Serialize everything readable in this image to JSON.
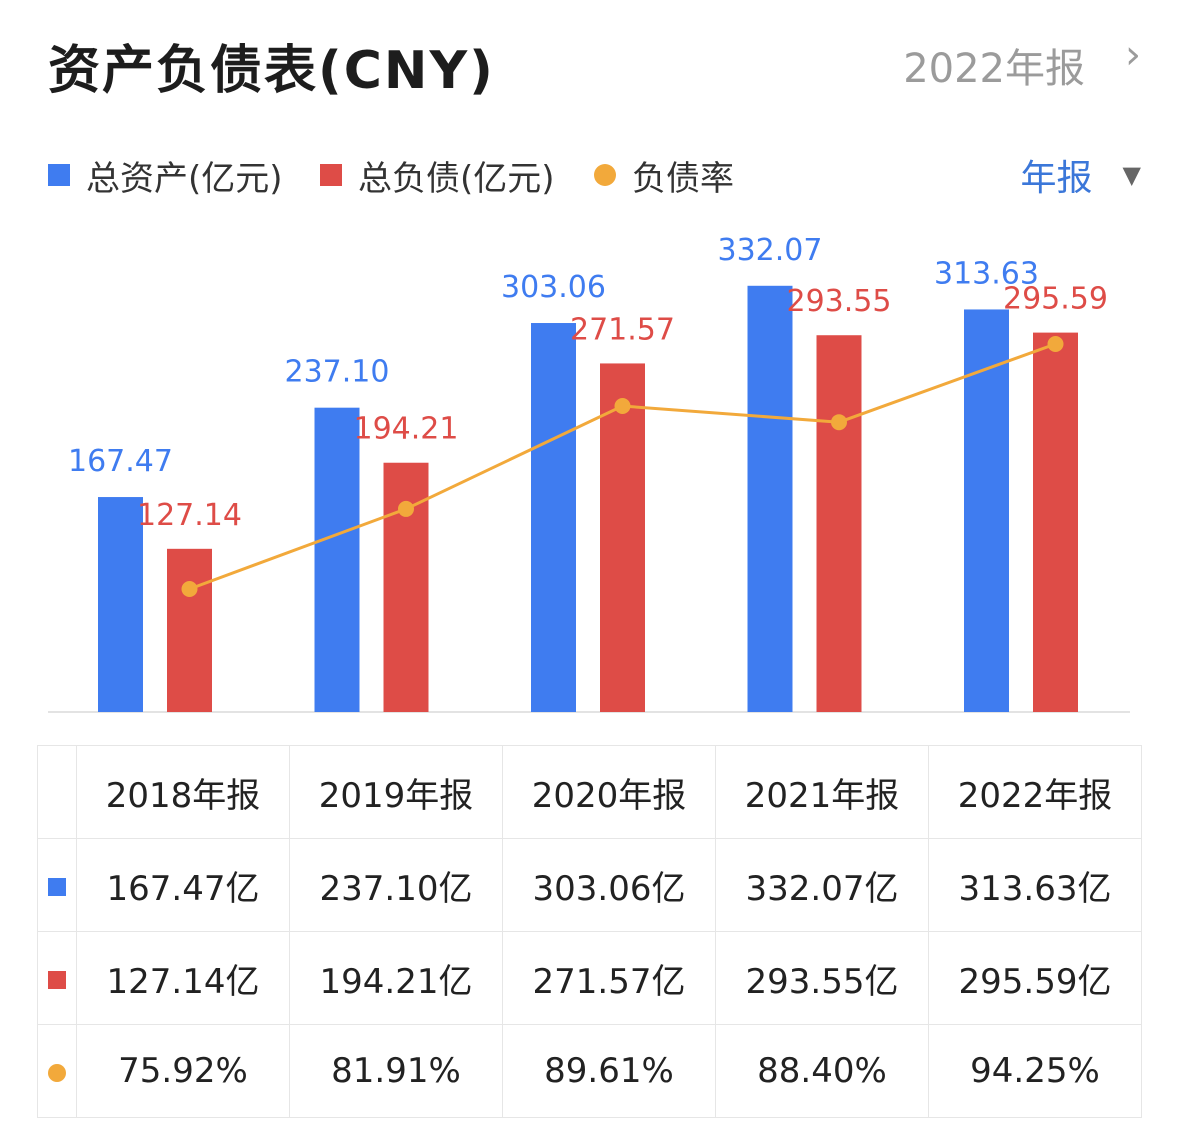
{
  "header": {
    "title": "资产负债表(CNY)",
    "period": "2022年报",
    "chevron": "›"
  },
  "legend": {
    "items": [
      {
        "label": "总资产(亿元)",
        "color": "#3f7cf0",
        "shape": "square"
      },
      {
        "label": "总负债(亿元)",
        "color": "#de4c47",
        "shape": "square"
      },
      {
        "label": "负债率",
        "color": "#f2a93b",
        "shape": "circle"
      }
    ],
    "freq_label": "年报",
    "freq_arrow": "▼"
  },
  "chart_data": {
    "type": "bar",
    "categories": [
      "2018年报",
      "2019年报",
      "2020年报",
      "2021年报",
      "2022年报"
    ],
    "series": [
      {
        "name": "总资产(亿元)",
        "type": "bar",
        "color": "#3f7cf0",
        "values": [
          167.47,
          237.1,
          303.06,
          332.07,
          313.63
        ],
        "labels": [
          "167.47",
          "237.10",
          "303.06",
          "332.07",
          "313.63"
        ]
      },
      {
        "name": "总负债(亿元)",
        "type": "bar",
        "color": "#de4c47",
        "values": [
          127.14,
          194.21,
          271.57,
          293.55,
          295.59
        ],
        "labels": [
          "127.14",
          "194.21",
          "271.57",
          "293.55",
          "295.59"
        ]
      },
      {
        "name": "负债率",
        "type": "line",
        "color": "#f2a93b",
        "values": [
          75.92,
          81.91,
          89.61,
          88.4,
          94.25
        ]
      }
    ],
    "grid": false
  },
  "table": {
    "header": [
      "",
      "2018年报",
      "2019年报",
      "2020年报",
      "2021年报",
      "2022年报"
    ],
    "rows": [
      {
        "marker": "square",
        "color": "#3f7cf0",
        "cells": [
          "167.47亿",
          "237.10亿",
          "303.06亿",
          "332.07亿",
          "313.63亿"
        ]
      },
      {
        "marker": "square",
        "color": "#de4c47",
        "cells": [
          "127.14亿",
          "194.21亿",
          "271.57亿",
          "293.55亿",
          "295.59亿"
        ]
      },
      {
        "marker": "circle",
        "color": "#f2a93b",
        "cells": [
          "75.92%",
          "81.91%",
          "89.61%",
          "88.40%",
          "94.25%"
        ]
      }
    ]
  }
}
